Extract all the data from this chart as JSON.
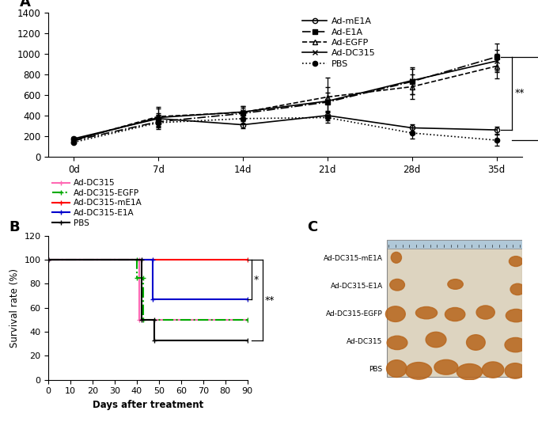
{
  "panel_A": {
    "days_labels": [
      "0d",
      "7d",
      "14d",
      "21d",
      "28d",
      "35d"
    ],
    "series": {
      "Ad-mE1A": {
        "means": [
          175,
          370,
          310,
          400,
          280,
          260
        ],
        "errors": [
          15,
          55,
          35,
          45,
          35,
          35
        ],
        "linestyle": "-",
        "marker": "o",
        "fillstyle": "none",
        "zorder": 5
      },
      "Ad-E1A": {
        "means": [
          155,
          340,
          420,
          530,
          730,
          970
        ],
        "errors": [
          15,
          70,
          55,
          90,
          120,
          130
        ],
        "linestyle": "-.",
        "marker": "s",
        "fillstyle": "full",
        "zorder": 4
      },
      "Ad-EGFP": {
        "means": [
          160,
          390,
          430,
          580,
          680,
          880
        ],
        "errors": [
          18,
          90,
          65,
          190,
          120,
          120
        ],
        "linestyle": "--",
        "marker": "^",
        "fillstyle": "none",
        "zorder": 3
      },
      "Ad-DC315": {
        "means": [
          162,
          380,
          435,
          540,
          740,
          930
        ],
        "errors": [
          18,
          85,
          60,
          140,
          130,
          110
        ],
        "linestyle": "-",
        "marker": "x",
        "fillstyle": "full",
        "zorder": 3
      },
      "PBS": {
        "means": [
          140,
          330,
          370,
          380,
          230,
          160
        ],
        "errors": [
          12,
          45,
          48,
          48,
          55,
          55
        ],
        "linestyle": ":",
        "marker": "o",
        "fillstyle": "full",
        "zorder": 2
      }
    },
    "ylim": [
      0,
      1400
    ],
    "yticks": [
      0,
      200,
      400,
      600,
      800,
      1000,
      1200,
      1400
    ]
  },
  "panel_B": {
    "xlabel": "Days after treatment",
    "ylabel": "Survival rate (%)",
    "ylim": [
      0,
      120
    ],
    "yticks": [
      0,
      20,
      40,
      60,
      80,
      100,
      120
    ],
    "xlim": [
      0,
      90
    ],
    "xticks": [
      0,
      10,
      20,
      30,
      40,
      50,
      60,
      70,
      80,
      90
    ],
    "series": {
      "Ad-DC315": {
        "x": [
          0,
          41,
          41,
          90
        ],
        "y": [
          100,
          100,
          50,
          50
        ],
        "color": "#ff69b4",
        "linestyle": "-",
        "linewidth": 1.5
      },
      "Ad-DC315-EGFP": {
        "x": [
          0,
          40,
          40,
          43,
          43,
          90
        ],
        "y": [
          100,
          100,
          85,
          85,
          50,
          50
        ],
        "color": "#00aa00",
        "linestyle": "-.",
        "linewidth": 1.5
      },
      "Ad-DC315-mE1A": {
        "x": [
          0,
          90
        ],
        "y": [
          100,
          100
        ],
        "color": "#ff0000",
        "linestyle": "-",
        "linewidth": 1.5
      },
      "Ad-DC315-E1A": {
        "x": [
          0,
          47,
          47,
          90
        ],
        "y": [
          100,
          100,
          67,
          67
        ],
        "color": "#0000cc",
        "linestyle": "-",
        "linewidth": 1.5
      },
      "PBS": {
        "x": [
          0,
          42,
          42,
          48,
          48,
          90
        ],
        "y": [
          100,
          100,
          50,
          50,
          33,
          33
        ],
        "color": "#000000",
        "linestyle": "-",
        "linewidth": 1.5
      }
    },
    "legend_order": [
      "Ad-DC315",
      "Ad-DC315-EGFP",
      "Ad-DC315-mE1A",
      "Ad-DC315-E1A",
      "PBS"
    ]
  },
  "panel_C": {
    "labels": [
      "Ad-DC315-mE1A",
      "Ad-DC315-E1A",
      "Ad-DC315-EGFP",
      "Ad-DC315",
      "PBS"
    ],
    "bg_color": "#d4c8b0",
    "ruler_color": "#b0c8d8"
  }
}
